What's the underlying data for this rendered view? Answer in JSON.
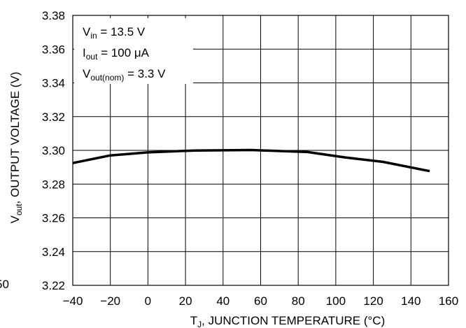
{
  "chart_data": {
    "type": "line",
    "title": "",
    "xlabel": {
      "main": "T",
      "sub": "J",
      "rest": ", JUNCTION TEMPERATURE (°C)"
    },
    "ylabel": {
      "main": "V",
      "sub": "out",
      "rest": ", OUTPUT VOLTAGE (V)"
    },
    "xlim": [
      -40,
      160
    ],
    "ylim": [
      3.22,
      3.38
    ],
    "x_ticks": [
      -40,
      -20,
      0,
      20,
      40,
      60,
      80,
      100,
      120,
      140,
      160
    ],
    "x_tick_labels": [
      "−40",
      "−20",
      "0",
      "20",
      "40",
      "60",
      "80",
      "100",
      "120",
      "140",
      "160"
    ],
    "y_ticks": [
      3.22,
      3.24,
      3.26,
      3.28,
      3.3,
      3.32,
      3.34,
      3.36,
      3.38
    ],
    "y_tick_labels": [
      "3.22",
      "3.24",
      "3.26",
      "3.28",
      "3.30",
      "3.32",
      "3.34",
      "3.36",
      "3.38"
    ],
    "grid": true,
    "series": [
      {
        "x": [
          -40,
          -20,
          0,
          25,
          55,
          85,
          105,
          125,
          150
        ],
        "y": [
          3.2925,
          3.297,
          3.2988,
          3.2999,
          3.3002,
          3.299,
          3.2958,
          3.2932,
          3.2877
        ],
        "color": "#000000"
      }
    ],
    "annotations": [
      {
        "main": "V",
        "sub": "in",
        "rest": " = 13.5 V"
      },
      {
        "main": "I",
        "sub": "out",
        "rest": " = 100 μA"
      },
      {
        "main": "V",
        "sub": "out(nom)",
        "rest": " = 3.3 V"
      }
    ],
    "stray_label": "50"
  }
}
